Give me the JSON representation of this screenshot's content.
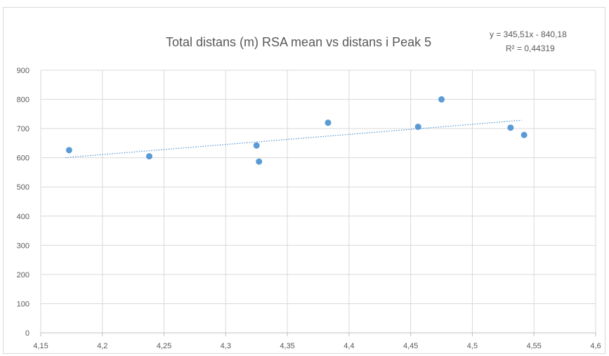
{
  "chart_data": {
    "type": "scatter",
    "title": "Total distans (m) RSA mean vs distans i Peak 5",
    "xlabel": "",
    "ylabel": "",
    "xlim": [
      4.15,
      4.6
    ],
    "ylim": [
      0,
      900
    ],
    "x_ticks": [
      4.15,
      4.2,
      4.25,
      4.3,
      4.35,
      4.4,
      4.45,
      4.5,
      4.55,
      4.6
    ],
    "x_tick_labels": [
      "4,15",
      "4,2",
      "4,25",
      "4,3",
      "4,35",
      "4,4",
      "4,45",
      "4,5",
      "4,55",
      "4,6"
    ],
    "y_ticks": [
      0,
      100,
      200,
      300,
      400,
      500,
      600,
      700,
      800,
      900
    ],
    "y_tick_labels": [
      "0",
      "100",
      "200",
      "300",
      "400",
      "500",
      "600",
      "700",
      "800",
      "900"
    ],
    "grid": true,
    "series": [
      {
        "points": [
          {
            "x": 4.173,
            "y": 626
          },
          {
            "x": 4.238,
            "y": 605
          },
          {
            "x": 4.325,
            "y": 642
          },
          {
            "x": 4.327,
            "y": 587
          },
          {
            "x": 4.383,
            "y": 720
          },
          {
            "x": 4.456,
            "y": 706
          },
          {
            "x": 4.475,
            "y": 800
          },
          {
            "x": 4.531,
            "y": 703
          },
          {
            "x": 4.542,
            "y": 678
          }
        ],
        "color": "#5b9bd5"
      }
    ],
    "trendline": {
      "type": "linear",
      "slope": 345.51,
      "intercept": -840.18,
      "x_range": [
        4.17,
        4.54
      ],
      "color": "#5b9bd5",
      "style": "dotted",
      "equation_label": "y = 345,51x - 840,18",
      "r2_label": "R² = 0,44319"
    }
  }
}
